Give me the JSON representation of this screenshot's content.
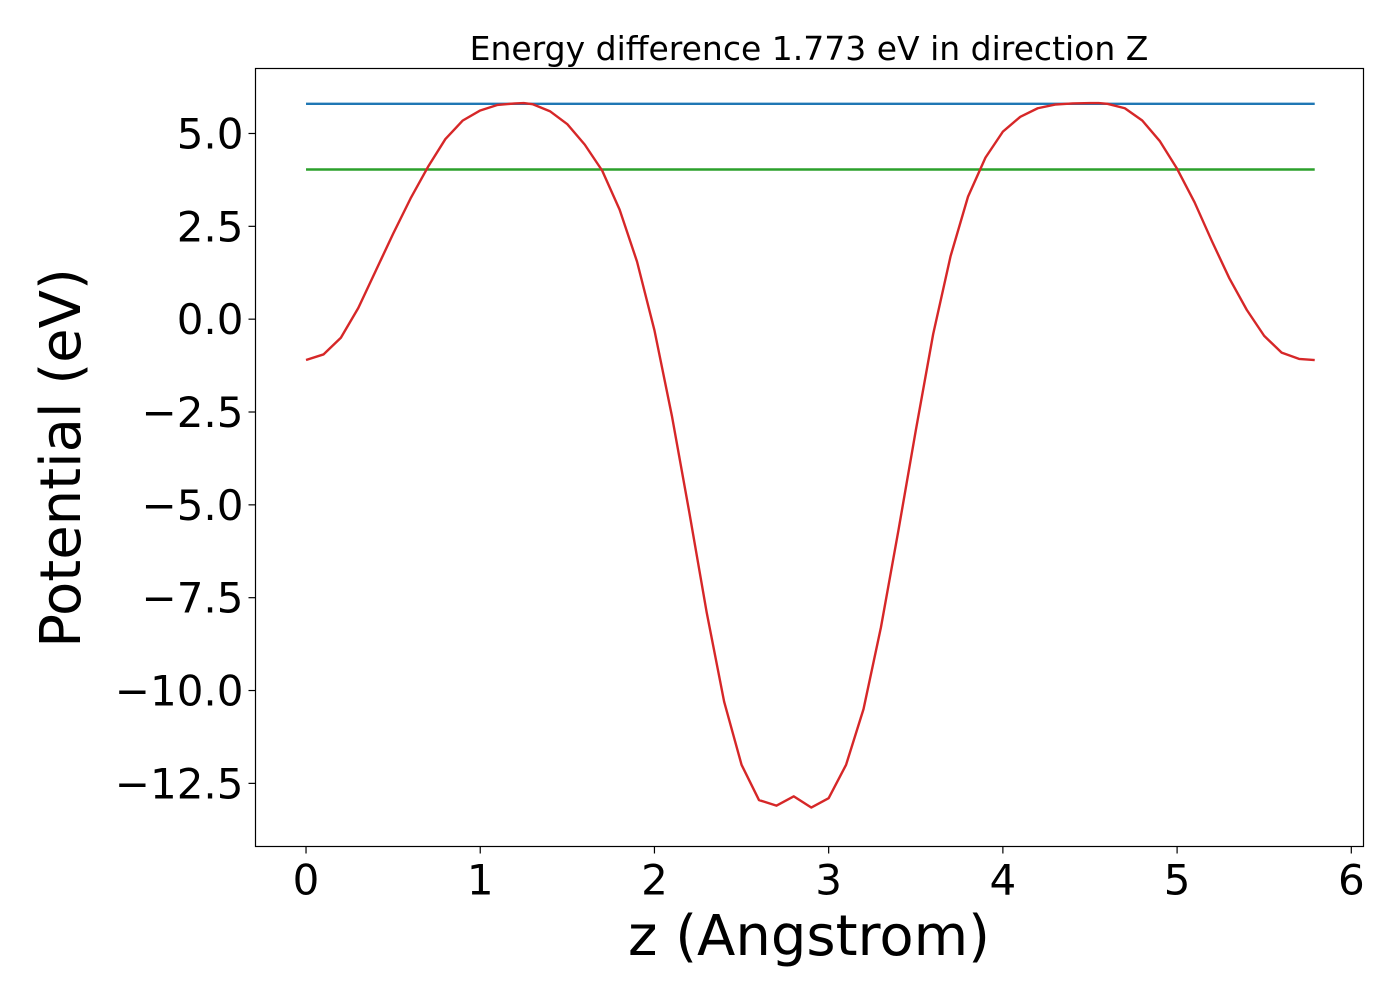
{
  "chart_data": {
    "type": "line",
    "title": "Energy difference 1.773 eV in direction Z",
    "xlabel": "z (Angstrom)",
    "ylabel": "Potential (eV)",
    "xlim": [
      -0.29,
      6.07
    ],
    "ylim": [
      -14.2,
      6.75
    ],
    "xticks": [
      0,
      1,
      2,
      3,
      4,
      5,
      6
    ],
    "xtick_labels": [
      "0",
      "1",
      "2",
      "3",
      "4",
      "5",
      "6"
    ],
    "yticks": [
      5.0,
      2.5,
      0.0,
      -2.5,
      -5.0,
      -7.5,
      -10.0,
      -12.5
    ],
    "ytick_labels": [
      "5.0",
      "2.5",
      "0.0",
      "−2.5",
      "−5.0",
      "−7.5",
      "−10.0",
      "−12.5"
    ],
    "grid": false,
    "legend": "none",
    "series": [
      {
        "color": "#1f77b4",
        "x": [
          0.0,
          5.79
        ],
        "y": [
          5.8,
          5.8
        ]
      },
      {
        "color": "#2ca02c",
        "x": [
          0.0,
          5.79
        ],
        "y": [
          4.03,
          4.03
        ]
      },
      {
        "color": "#d62728",
        "x": [
          0.0,
          0.1,
          0.2,
          0.3,
          0.4,
          0.5,
          0.6,
          0.7,
          0.8,
          0.9,
          1.0,
          1.1,
          1.2,
          1.25,
          1.3,
          1.4,
          1.5,
          1.6,
          1.7,
          1.8,
          1.9,
          2.0,
          2.1,
          2.2,
          2.3,
          2.4,
          2.5,
          2.6,
          2.7,
          2.8,
          2.9,
          3.0,
          3.1,
          3.2,
          3.3,
          3.4,
          3.5,
          3.6,
          3.7,
          3.8,
          3.9,
          4.0,
          4.1,
          4.2,
          4.3,
          4.4,
          4.5,
          4.55,
          4.6,
          4.7,
          4.8,
          4.9,
          5.0,
          5.1,
          5.2,
          5.3,
          5.4,
          5.5,
          5.6,
          5.7,
          5.79
        ],
        "y": [
          -1.1,
          -0.95,
          -0.5,
          0.3,
          1.3,
          2.3,
          3.25,
          4.1,
          4.85,
          5.35,
          5.62,
          5.77,
          5.81,
          5.82,
          5.79,
          5.6,
          5.25,
          4.7,
          4.0,
          2.95,
          1.55,
          -0.3,
          -2.6,
          -5.2,
          -7.9,
          -10.3,
          -12.0,
          -12.95,
          -13.1,
          -12.85,
          -13.15,
          -12.9,
          -12.0,
          -10.5,
          -8.3,
          -5.7,
          -3.0,
          -0.4,
          1.7,
          3.3,
          4.35,
          5.05,
          5.45,
          5.68,
          5.78,
          5.81,
          5.82,
          5.82,
          5.8,
          5.68,
          5.35,
          4.8,
          4.05,
          3.15,
          2.1,
          1.1,
          0.25,
          -0.45,
          -0.9,
          -1.07,
          -1.1
        ]
      }
    ]
  }
}
